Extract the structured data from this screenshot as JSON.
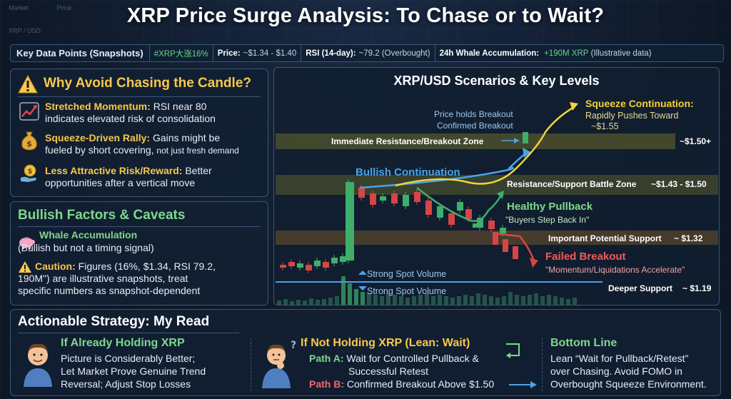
{
  "background_ghost": {
    "top_left": "Market",
    "top_mid": "Price",
    "pair": "XRP / USD"
  },
  "title": "XRP Price Surge Analysis: To Chase or to Wait?",
  "keybar": {
    "lead": "Key Data Points (Snapshots)",
    "hashtag": "#XRP大涨16%",
    "price_label": "Price:",
    "price_value": "~$1.34 - $1.40",
    "rsi_label": "RSI (14-day):",
    "rsi_value": "~79.2 (Overbought)",
    "whale_label": "24h Whale Accumulation:",
    "whale_value": "+190M XRP",
    "whale_note": "(Illustrative data)"
  },
  "avoid": {
    "title": "Why Avoid Chasing the Candle?",
    "items": [
      {
        "icon": "trend-up-icon",
        "head": "Stretched Momentum:",
        "body": "RSI near 80",
        "body2": "indicates elevated risk of consolidation"
      },
      {
        "icon": "money-bag-icon",
        "head": "Squeeze-Driven Rally:",
        "body": "Gains might be",
        "body2": "fueled by short covering,",
        "body2_small": "not just fresh demand"
      },
      {
        "icon": "coin-hand-icon",
        "head": "Less Attractive Risk/Reward:",
        "body": "Better",
        "body2": "opportunities after a vertical move"
      }
    ]
  },
  "bullish": {
    "title": "Bullish Factors & Caveats",
    "whale_head": "Whale Accumulation",
    "whale_body": "(Bullish but not a timing signal)",
    "caution_head": "Caution:",
    "caution_l1": "Figures (16%, $1.34, RSI 79.2,",
    "caution_l2": "190M\") are illustrative snapshots, treat",
    "caution_l3": "specific numbers as snapshot-dependent"
  },
  "chart": {
    "title": "XRP/USD Scenarios & Key Levels",
    "levels": {
      "immediate": "Immediate Resistance/Breakout Zone",
      "immediate_price": "~$1.50+",
      "battle": "Resistance/Support Battle Zone",
      "battle_price": "~$1.43 - $1.50",
      "important": "Important Potential Support",
      "important_price": "~ $1.32",
      "deeper": "Deeper Support",
      "deeper_price": "~ $1.19"
    },
    "annotations": {
      "holds1": "Price holds Breakout",
      "holds2": "Confirmed Breakout",
      "squeeze_head": "Squeeze Continuation:",
      "squeeze_l1": "Rapidly Pushes Toward",
      "squeeze_l2": "~$1.55",
      "bullish_cont": "Bullish Continuation",
      "pullback_head": "Healthy Pullback",
      "pullback_sub": "\"Buyers Step Back In\"",
      "failed_head": "Failed Breakout",
      "failed_sub": "\"Momentum/Liquidations Accelerate\"",
      "vol1": "Strong Spot Volume",
      "vol2": "Strong Spot Volume"
    },
    "colors": {
      "green": "#3fae6a",
      "red": "#d64545",
      "blue": "#4aa3e8",
      "yellow": "#f3d338"
    }
  },
  "strategy": {
    "title": "Actionable Strategy: My Read",
    "holding": {
      "head": "If Already Holding XRP",
      "l1": "Picture is Considerably Better;",
      "l2": "Let Market Prove Genuine Trend",
      "l3": "Reversal; Adjust Stop Losses"
    },
    "not_holding": {
      "head": "If Not Holding XRP (Lean: Wait)",
      "a_label": "Path A:",
      "a_l1": "Wait for Controlled Pullback &",
      "a_l2": "Successful Retest",
      "b_label": "Path B:",
      "b_l1": "Confirmed Breakout Above $1.50"
    },
    "bottom": {
      "head": "Bottom Line",
      "l1": "Lean “Wait for Pullback/Retest”",
      "l2": "over Chasing. Avoid FOMO in",
      "l3": "Overbought Squeeze Environment."
    }
  }
}
